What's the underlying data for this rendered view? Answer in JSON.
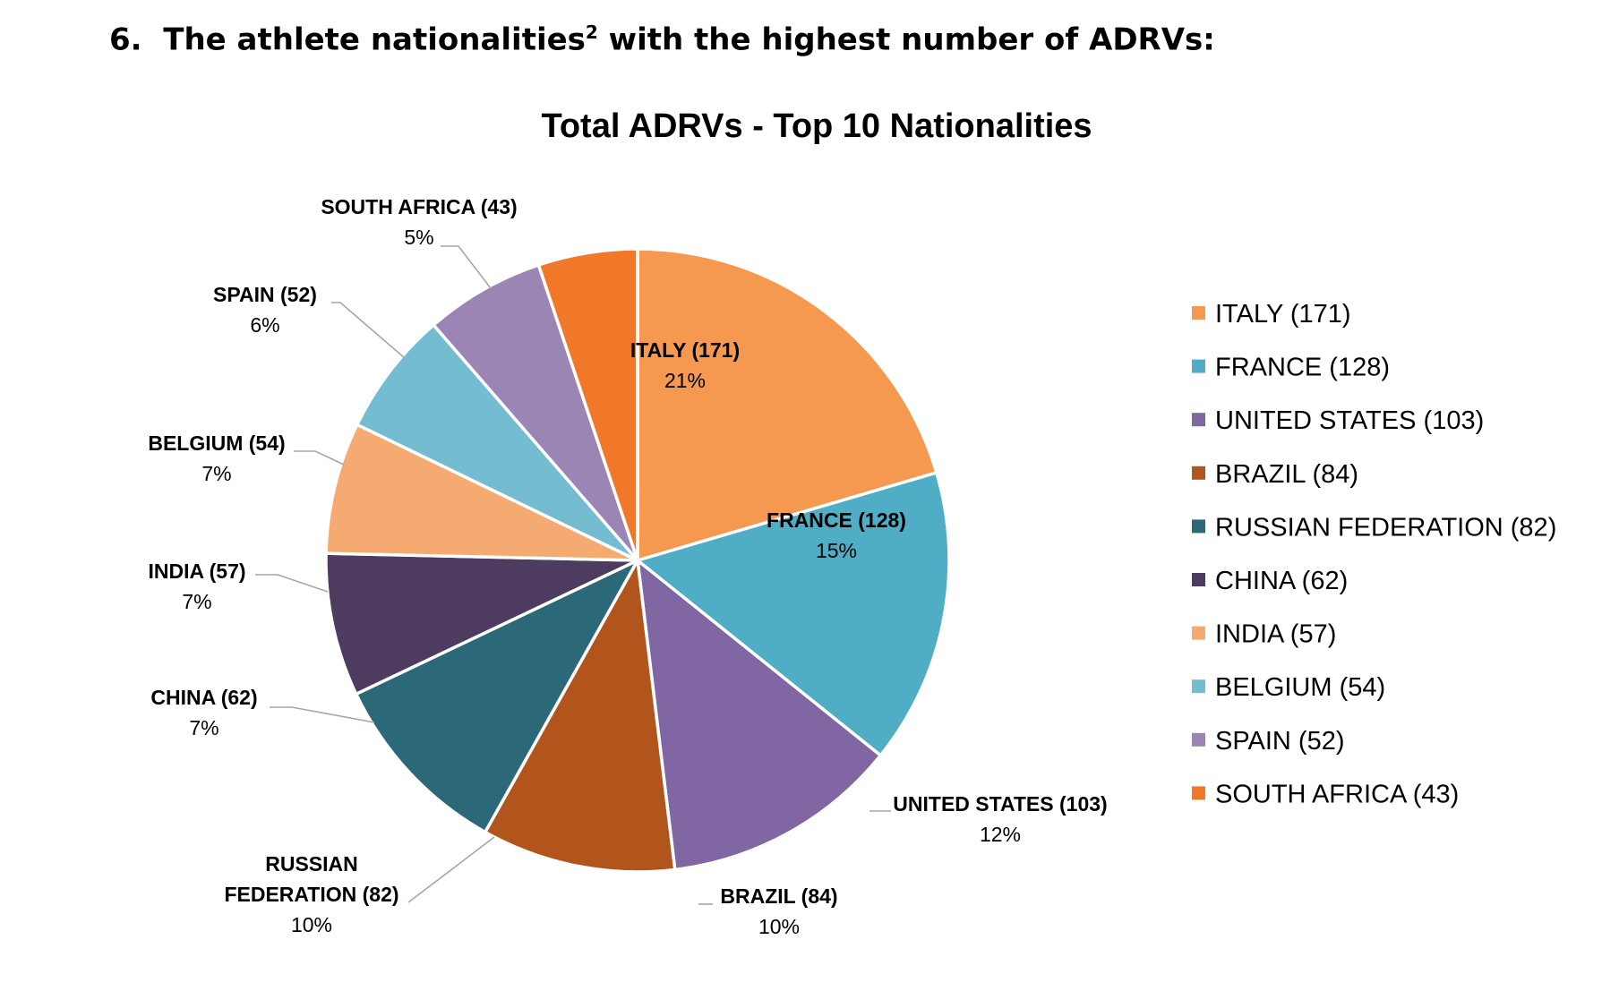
{
  "heading": {
    "number": "6.",
    "text": "The athlete nationalities",
    "sup": "2",
    "text_after": "with the highest number of ADRVs:"
  },
  "chart_data": {
    "type": "pie",
    "title": "Total ADRVs - Top 10 Nationalities",
    "legend_position": "right",
    "slices": [
      {
        "label": "ITALY (171)",
        "name_lines": [
          "ITALY (171)"
        ],
        "value": 171,
        "percent": "21%",
        "color": "#F4994F",
        "label_position": "inside"
      },
      {
        "label": "FRANCE (128)",
        "name_lines": [
          "FRANCE (128)"
        ],
        "value": 128,
        "percent": "15%",
        "color": "#4FAEC6",
        "label_position": "inside"
      },
      {
        "label": "UNITED STATES (103)",
        "name_lines": [
          "UNITED STATES (103)"
        ],
        "value": 103,
        "percent": "12%",
        "color": "#8066A2",
        "label_position": "outside"
      },
      {
        "label": "BRAZIL (84)",
        "name_lines": [
          "BRAZIL (84)"
        ],
        "value": 84,
        "percent": "10%",
        "color": "#B2551C",
        "label_position": "outside"
      },
      {
        "label": "RUSSIAN FEDERATION (82)",
        "name_lines": [
          "RUSSIAN",
          "FEDERATION (82)"
        ],
        "value": 82,
        "percent": "10%",
        "color": "#2B6978",
        "label_position": "outside"
      },
      {
        "label": "CHINA (62)",
        "name_lines": [
          "CHINA (62)"
        ],
        "value": 62,
        "percent": "7%",
        "color": "#4D3B60",
        "label_position": "outside"
      },
      {
        "label": "INDIA (57)",
        "name_lines": [
          "INDIA (57)"
        ],
        "value": 57,
        "percent": "7%",
        "color": "#F5AA72",
        "label_position": "outside"
      },
      {
        "label": "BELGIUM (54)",
        "name_lines": [
          "BELGIUM (54)"
        ],
        "value": 54,
        "percent": "7%",
        "color": "#74BCD0",
        "label_position": "outside"
      },
      {
        "label": "SPAIN (52)",
        "name_lines": [
          "SPAIN (52)"
        ],
        "value": 52,
        "percent": "6%",
        "color": "#9B85B4",
        "label_position": "outside"
      },
      {
        "label": "SOUTH AFRICA (43)",
        "name_lines": [
          "SOUTH AFRICA (43)"
        ],
        "value": 43,
        "percent": "5%",
        "color": "#F07828",
        "label_position": "outside"
      }
    ]
  }
}
